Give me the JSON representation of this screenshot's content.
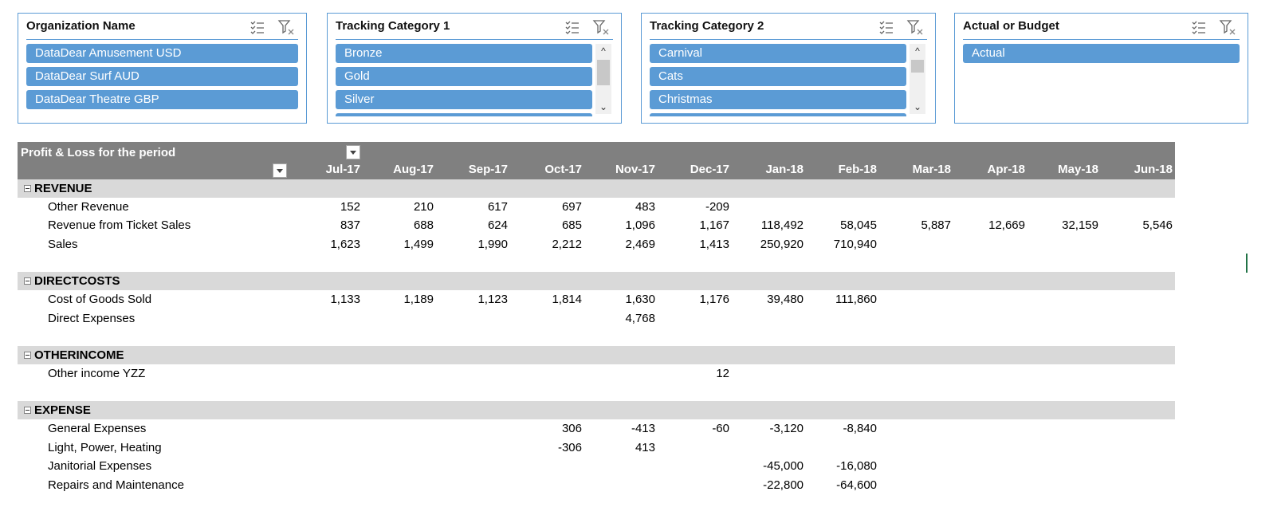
{
  "slicers": [
    {
      "title": "Organization Name",
      "items": [
        "DataDear Amusement USD",
        "DataDear Surf AUD",
        "DataDear Theatre GBP"
      ],
      "has_scrollbar": false
    },
    {
      "title": "Tracking Category 1",
      "items": [
        "Bronze",
        "Gold",
        "Silver",
        ""
      ],
      "has_scrollbar": true
    },
    {
      "title": "Tracking Category 2",
      "items": [
        "Carnival",
        "Cats",
        "Christmas",
        ""
      ],
      "has_scrollbar": true
    },
    {
      "title": "Actual or Budget",
      "items": [
        "Actual"
      ],
      "has_scrollbar": false
    }
  ],
  "slicer_icons": {
    "multi_select": "multi-select-icon",
    "clear_filter": "clear-filter-icon",
    "scroll_up": "^",
    "scroll_down": "⌄"
  },
  "colors": {
    "slicer_selected": "#5b9bd5",
    "slicer_border": "#5b9bd5",
    "pivot_header": "#808080",
    "section_band": "#d9d9d9"
  },
  "pivot": {
    "title": "Profit & Loss for the period",
    "months": [
      "Jul-17",
      "Aug-17",
      "Sep-17",
      "Oct-17",
      "Nov-17",
      "Dec-17",
      "Jan-18",
      "Feb-18",
      "Mar-18",
      "Apr-18",
      "May-18",
      "Jun-18"
    ],
    "sections": [
      {
        "name": "REVENUE",
        "rows": [
          {
            "label": "Other Revenue",
            "values": [
              "152",
              "210",
              "617",
              "697",
              "483",
              "-209",
              "",
              "",
              "",
              "",
              "",
              ""
            ]
          },
          {
            "label": "Revenue from Ticket Sales",
            "values": [
              "837",
              "688",
              "624",
              "685",
              "1,096",
              "1,167",
              "118,492",
              "58,045",
              "5,887",
              "12,669",
              "32,159",
              "5,546"
            ]
          },
          {
            "label": "Sales",
            "values": [
              "1,623",
              "1,499",
              "1,990",
              "2,212",
              "2,469",
              "1,413",
              "250,920",
              "710,940",
              "",
              "",
              "",
              ""
            ]
          }
        ]
      },
      {
        "name": "DIRECTCOSTS",
        "rows": [
          {
            "label": "Cost of Goods Sold",
            "values": [
              "1,133",
              "1,189",
              "1,123",
              "1,814",
              "1,630",
              "1,176",
              "39,480",
              "111,860",
              "",
              "",
              "",
              ""
            ]
          },
          {
            "label": "Direct Expenses",
            "values": [
              "",
              "",
              "",
              "",
              "4,768",
              "",
              "",
              "",
              "",
              "",
              "",
              ""
            ]
          }
        ]
      },
      {
        "name": "OTHERINCOME",
        "rows": [
          {
            "label": "Other income YZZ",
            "values": [
              "",
              "",
              "",
              "",
              "",
              "12",
              "",
              "",
              "",
              "",
              "",
              ""
            ]
          }
        ]
      },
      {
        "name": "EXPENSE",
        "rows": [
          {
            "label": "General Expenses",
            "values": [
              "",
              "",
              "",
              "306",
              "-413",
              "-60",
              "-3,120",
              "-8,840",
              "",
              "",
              "",
              ""
            ]
          },
          {
            "label": "Light, Power, Heating",
            "values": [
              "",
              "",
              "",
              "-306",
              "413",
              "",
              "",
              "",
              "",
              "",
              "",
              ""
            ]
          },
          {
            "label": "Janitorial Expenses",
            "values": [
              "",
              "",
              "",
              "",
              "",
              "",
              "-45,000",
              "-16,080",
              "",
              "",
              "",
              ""
            ]
          },
          {
            "label": "Repairs and Maintenance",
            "values": [
              "",
              "",
              "",
              "",
              "",
              "",
              "-22,800",
              "-64,600",
              "",
              "",
              "",
              ""
            ]
          }
        ]
      }
    ]
  }
}
